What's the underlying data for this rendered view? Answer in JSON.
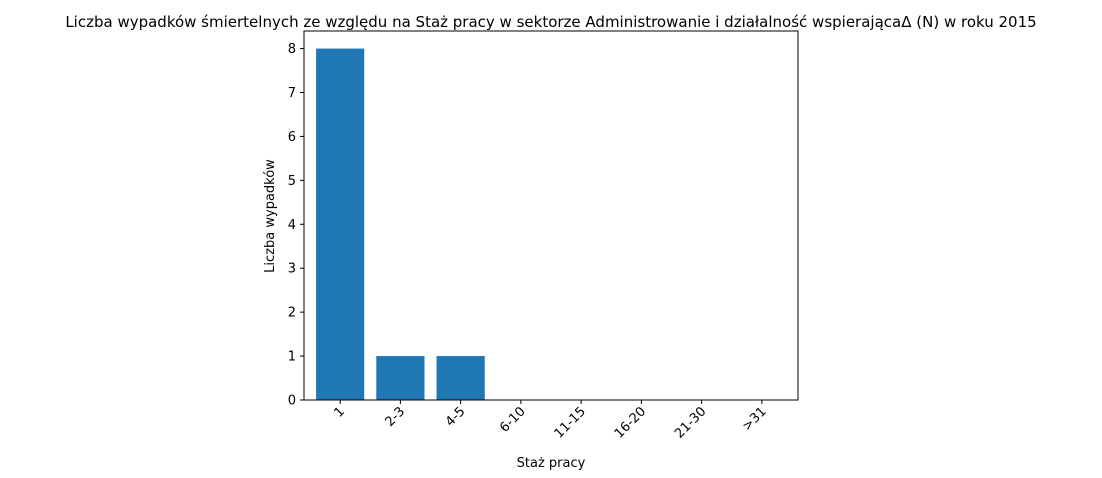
{
  "chart_data": {
    "type": "bar",
    "title": "Liczba wypadków śmiertelnych ze względu na Staż pracy w sektorze Administrowanie i działalność wspierającaΔ (N) w roku 2015",
    "xlabel": "Staż pracy",
    "ylabel": "Liczba wypadków",
    "categories": [
      "1",
      "2-3",
      "4-5",
      "6-10",
      "11-15",
      "16-20",
      "21-30",
      ">31"
    ],
    "values": [
      8,
      1,
      1,
      0,
      0,
      0,
      0,
      0
    ],
    "ylim": [
      0,
      8.4
    ],
    "yticks": [
      0,
      1,
      2,
      3,
      4,
      5,
      6,
      7,
      8
    ],
    "bar_color": "#1f77b4",
    "grid": false,
    "legend": "none"
  }
}
